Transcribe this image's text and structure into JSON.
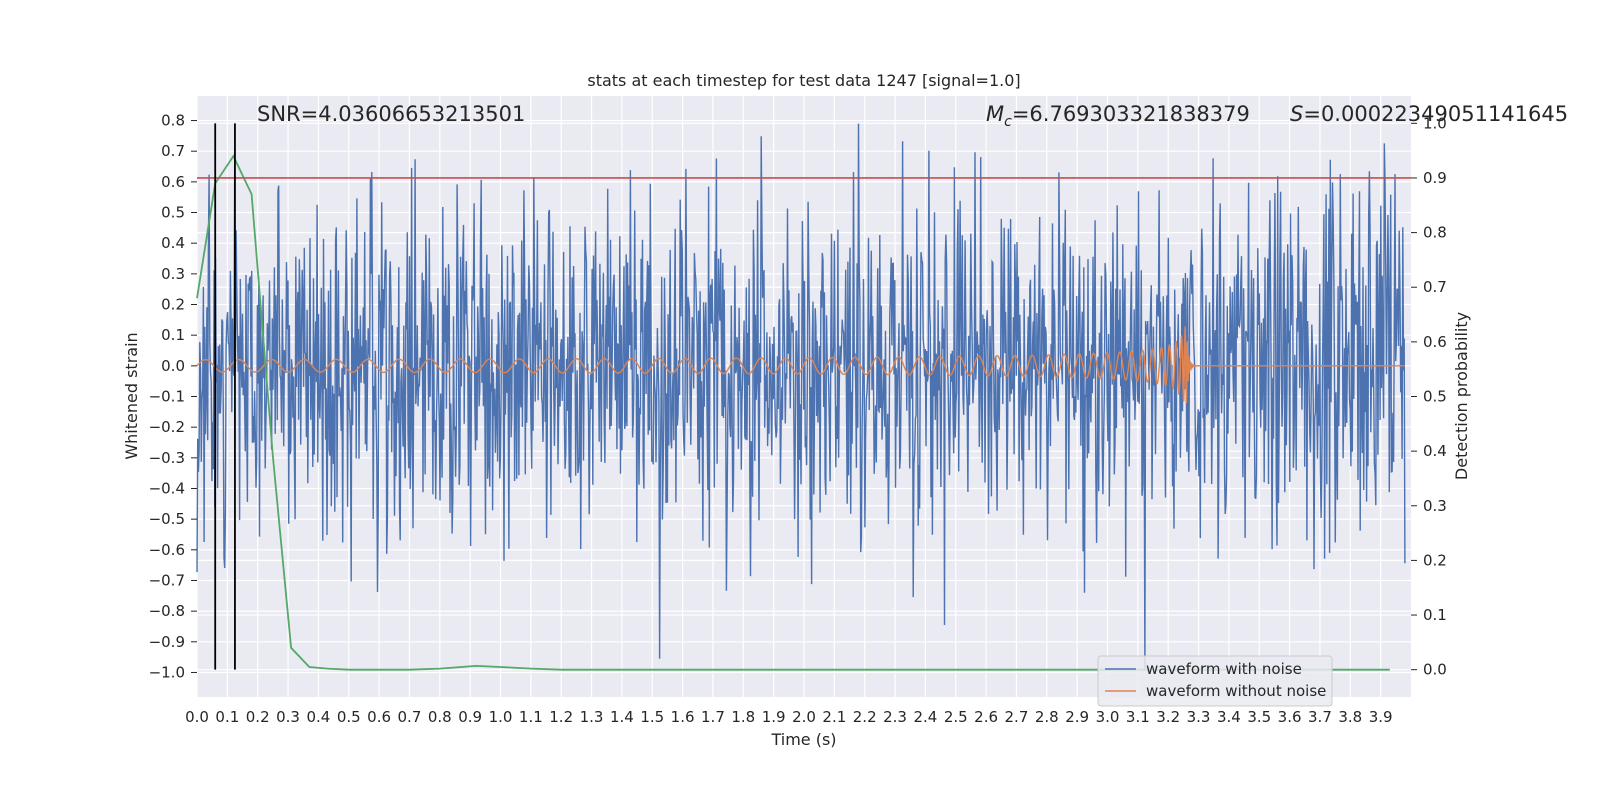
{
  "chart_data": {
    "type": "line",
    "title": "stats at each timestep for test data 1247 [signal=1.0]",
    "xlabel": "Time (s)",
    "ylabel": "Whitened strain",
    "ylabel_right": "Detection probability",
    "xlim": [
      0.0,
      4.0
    ],
    "ylim": [
      -1.08,
      0.88
    ],
    "ylim_right": [
      -0.05,
      1.05
    ],
    "x_ticks": [
      "0.0",
      "0.1",
      "0.2",
      "0.3",
      "0.4",
      "0.5",
      "0.6",
      "0.7",
      "0.8",
      "0.9",
      "1.0",
      "1.1",
      "1.2",
      "1.3",
      "1.4",
      "1.5",
      "1.6",
      "1.7",
      "1.8",
      "1.9",
      "2.0",
      "2.1",
      "2.2",
      "2.3",
      "2.4",
      "2.5",
      "2.6",
      "2.7",
      "2.8",
      "2.9",
      "3.0",
      "3.1",
      "3.2",
      "3.3",
      "3.4",
      "3.5",
      "3.6",
      "3.7",
      "3.8",
      "3.9"
    ],
    "y_ticks": [
      "0.8",
      "0.7",
      "0.6",
      "0.5",
      "0.4",
      "0.3",
      "0.2",
      "0.1",
      "0.0",
      "−0.1",
      "−0.2",
      "−0.3",
      "−0.4",
      "−0.5",
      "−0.6",
      "−0.7",
      "−0.8",
      "−0.9",
      "−1.0"
    ],
    "y_ticks_right": [
      "1.0",
      "0.9",
      "0.8",
      "0.7",
      "0.6",
      "0.5",
      "0.4",
      "0.3",
      "0.2",
      "0.1",
      "0.0"
    ],
    "grid": true,
    "legend_position": "bottom-right",
    "series": [
      {
        "name": "waveform with noise",
        "color": "#4c72b0",
        "description_envelope": {
          "typical_amplitude": 0.45,
          "max": 0.79,
          "min": -0.99
        }
      },
      {
        "name": "waveform without noise",
        "color": "#dd8452",
        "chirp": {
          "start_amp": 0.02,
          "peak_amp": 0.13,
          "merger_time": 3.26,
          "end_time": 3.98
        }
      },
      {
        "color": "#55a868",
        "axis": "right",
        "x": [
          0.0,
          0.06,
          0.12,
          0.18,
          0.25,
          0.31,
          0.37,
          0.43,
          0.5,
          0.6,
          0.7,
          0.8,
          0.92,
          1.0,
          1.1,
          1.2,
          1.5,
          2.0,
          2.5,
          3.0,
          3.5,
          3.93
        ],
        "y": [
          0.68,
          0.89,
          0.94,
          0.87,
          0.39,
          0.04,
          0.005,
          0.002,
          0.0,
          0.0,
          0.0,
          0.002,
          0.007,
          0.005,
          0.002,
          0.0,
          0.0,
          0.0,
          0.0,
          0.0,
          0.0,
          0.0
        ]
      },
      {
        "color": "#c44e52",
        "axis": "right",
        "type": "hline",
        "y": 0.9
      }
    ],
    "vlines": [
      0.06,
      0.125
    ],
    "vline_color": "#000000",
    "annotations": {
      "snr": "SNR=4.03606653213501",
      "mc": "=6.769303321838379",
      "mc_symbol": "M",
      "mc_sub": "c",
      "s_symbol": "S",
      "s": "=0.00022349051141645"
    }
  }
}
